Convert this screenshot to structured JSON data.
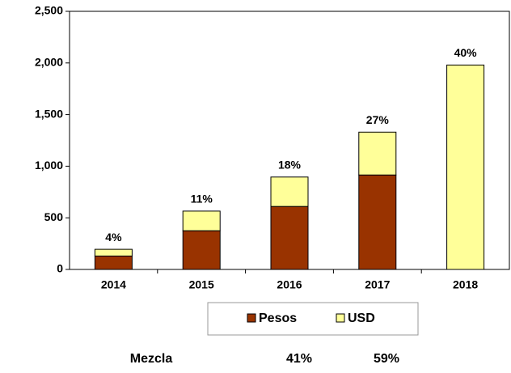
{
  "chart_data": {
    "type": "stacked_bar",
    "categories": [
      "2014",
      "2015",
      "2016",
      "2017",
      "2018"
    ],
    "series": [
      {
        "name": "Pesos",
        "color": "#993300",
        "values": [
          130,
          375,
          610,
          915,
          0
        ]
      },
      {
        "name": "USD",
        "color": "#ffff99",
        "values": [
          65,
          190,
          285,
          415,
          1980
        ]
      }
    ],
    "bar_labels": [
      "4%",
      "11%",
      "18%",
      "27%",
      "40%"
    ],
    "ylim": [
      0,
      2500
    ],
    "yticks": [
      0,
      500,
      {
        "value": 1000,
        "label": "1,000"
      },
      {
        "value": 1500,
        "label": "1,500"
      },
      {
        "value": 2000,
        "label": "2,000"
      },
      {
        "value": 2500,
        "label": "2,500"
      }
    ],
    "legend": "bottom",
    "footer": {
      "label": "Mezcla",
      "values": [
        "41%",
        "59%"
      ]
    }
  }
}
